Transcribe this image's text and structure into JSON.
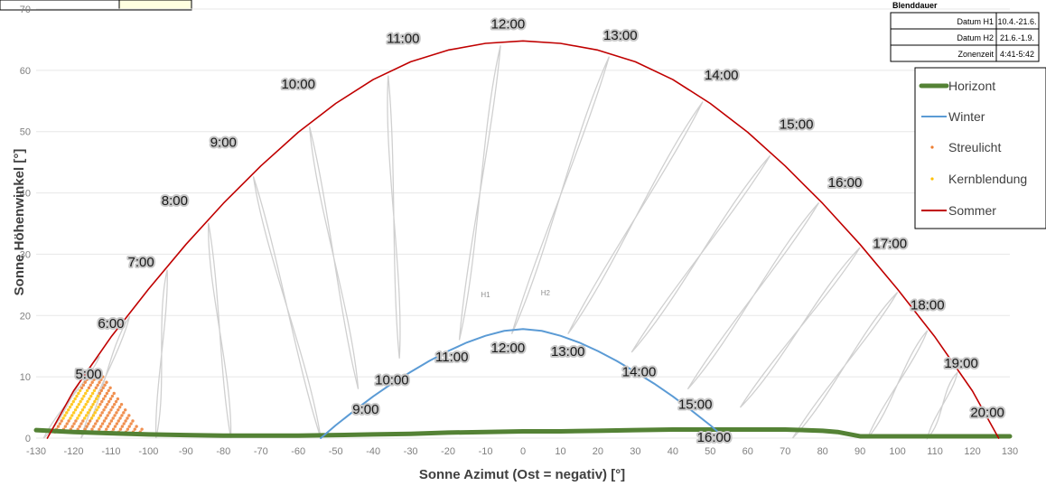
{
  "chart_data": {
    "type": "line",
    "xlabel": "Sonne Azimut (Ost = negativ) [°]",
    "ylabel": "Sonne Höhenwinkel [°]",
    "xlim": [
      -130,
      130
    ],
    "ylim": [
      0,
      70
    ],
    "xticks": [
      -130,
      -120,
      -110,
      -100,
      -90,
      -80,
      -70,
      -60,
      -50,
      -40,
      -30,
      -20,
      -10,
      0,
      10,
      20,
      30,
      40,
      50,
      60,
      70,
      80,
      90,
      100,
      110,
      120,
      130
    ],
    "yticks": [
      0,
      10,
      20,
      30,
      40,
      50,
      60,
      70
    ],
    "colors": {
      "horizont": "#548235",
      "winter": "#5b9bd5",
      "sommer": "#c00000",
      "streulicht": "#ed7d31",
      "kernblendung": "#ffc000",
      "analemma": "#d0d0d0",
      "grid": "#e7e7e7"
    },
    "legend": {
      "placement": "right",
      "entries": [
        "Horizont",
        "Winter",
        "Streulicht",
        "Kernblendung",
        "Sommer"
      ]
    },
    "series": [
      {
        "name": "Horizont",
        "x": [
          -130,
          -120,
          -110,
          -100,
          -90,
          -80,
          -70,
          -60,
          -50,
          -40,
          -30,
          -20,
          -10,
          0,
          10,
          20,
          30,
          40,
          50,
          60,
          70,
          80,
          84,
          90,
          100,
          110,
          120,
          130
        ],
        "y": [
          1.3,
          1.0,
          0.8,
          0.6,
          0.5,
          0.4,
          0.4,
          0.4,
          0.5,
          0.6,
          0.7,
          0.9,
          1.0,
          1.1,
          1.1,
          1.2,
          1.3,
          1.4,
          1.4,
          1.4,
          1.4,
          1.2,
          1.0,
          0.3,
          0.3,
          0.3,
          0.3,
          0.3
        ]
      },
      {
        "name": "Sommer",
        "x": [
          -127,
          -120,
          -110,
          -100,
          -90,
          -80,
          -70,
          -60,
          -50,
          -40,
          -30,
          -20,
          -10,
          0,
          10,
          20,
          30,
          40,
          50,
          60,
          70,
          80,
          90,
          100,
          110,
          120,
          127
        ],
        "y": [
          0,
          7.7,
          16.5,
          24.3,
          31.6,
          38.3,
          44.4,
          49.9,
          54.6,
          58.5,
          61.4,
          63.3,
          64.4,
          64.8,
          64.4,
          63.3,
          61.4,
          58.5,
          54.6,
          49.9,
          44.4,
          38.3,
          31.6,
          24.3,
          16.5,
          7.7,
          0
        ]
      },
      {
        "name": "Winter",
        "x": [
          -54,
          -50,
          -45,
          -40,
          -35,
          -30,
          -25,
          -20,
          -15,
          -10,
          -5,
          0,
          5,
          10,
          15,
          20,
          25,
          30,
          35,
          40,
          45,
          50,
          54
        ],
        "y": [
          0,
          2.1,
          4.5,
          6.8,
          8.9,
          10.8,
          12.6,
          14.2,
          15.6,
          16.7,
          17.5,
          17.8,
          17.5,
          16.7,
          15.6,
          14.2,
          12.6,
          10.8,
          8.9,
          6.8,
          4.5,
          2.1,
          0
        ]
      }
    ],
    "time_labels_sommer": [
      {
        "text": "5:00",
        "x": -116,
        "y": 9.7
      },
      {
        "text": "6:00",
        "x": -110,
        "y": 18.0
      },
      {
        "text": "7:00",
        "x": -102,
        "y": 28.0
      },
      {
        "text": "8:00",
        "x": -93,
        "y": 38.0
      },
      {
        "text": "9:00",
        "x": -80,
        "y": 47.5
      },
      {
        "text": "10:00",
        "x": -60,
        "y": 57.0
      },
      {
        "text": "11:00",
        "x": -32,
        "y": 64.5
      },
      {
        "text": "12:00",
        "x": -4,
        "y": 66.8
      },
      {
        "text": "13:00",
        "x": 26,
        "y": 65.0
      },
      {
        "text": "14:00",
        "x": 53,
        "y": 58.5
      },
      {
        "text": "15:00",
        "x": 73,
        "y": 50.5
      },
      {
        "text": "16:00",
        "x": 86,
        "y": 41.0
      },
      {
        "text": "17:00",
        "x": 98,
        "y": 31.0
      },
      {
        "text": "18:00",
        "x": 108,
        "y": 21.0
      },
      {
        "text": "19:00",
        "x": 117,
        "y": 11.5
      },
      {
        "text": "20:00",
        "x": 124,
        "y": 3.5
      }
    ],
    "time_labels_winter": [
      {
        "text": "9:00",
        "x": -42,
        "y": 4.0
      },
      {
        "text": "10:00",
        "x": -35,
        "y": 8.8
      },
      {
        "text": "11:00",
        "x": -19,
        "y": 12.5
      },
      {
        "text": "12:00",
        "x": -4,
        "y": 14.0
      },
      {
        "text": "13:00",
        "x": 12,
        "y": 13.4
      },
      {
        "text": "14:00",
        "x": 31,
        "y": 10.1
      },
      {
        "text": "15:00",
        "x": 46,
        "y": 4.8
      },
      {
        "text": "16:00",
        "x": 51,
        "y": -0.6
      }
    ],
    "analemma_labels": [
      {
        "text": "H1",
        "x": -10,
        "y": 23.0
      },
      {
        "text": "H2",
        "x": 6,
        "y": 23.3
      }
    ]
  },
  "blenddauer": {
    "title": "Blenddauer",
    "rows": [
      {
        "label": "Datum H1",
        "value": "10.4.-21.6."
      },
      {
        "label": "Datum H2",
        "value": "21.6.-1.9."
      },
      {
        "label": "Zonenzeit",
        "value": "4:41-5:42"
      }
    ]
  }
}
